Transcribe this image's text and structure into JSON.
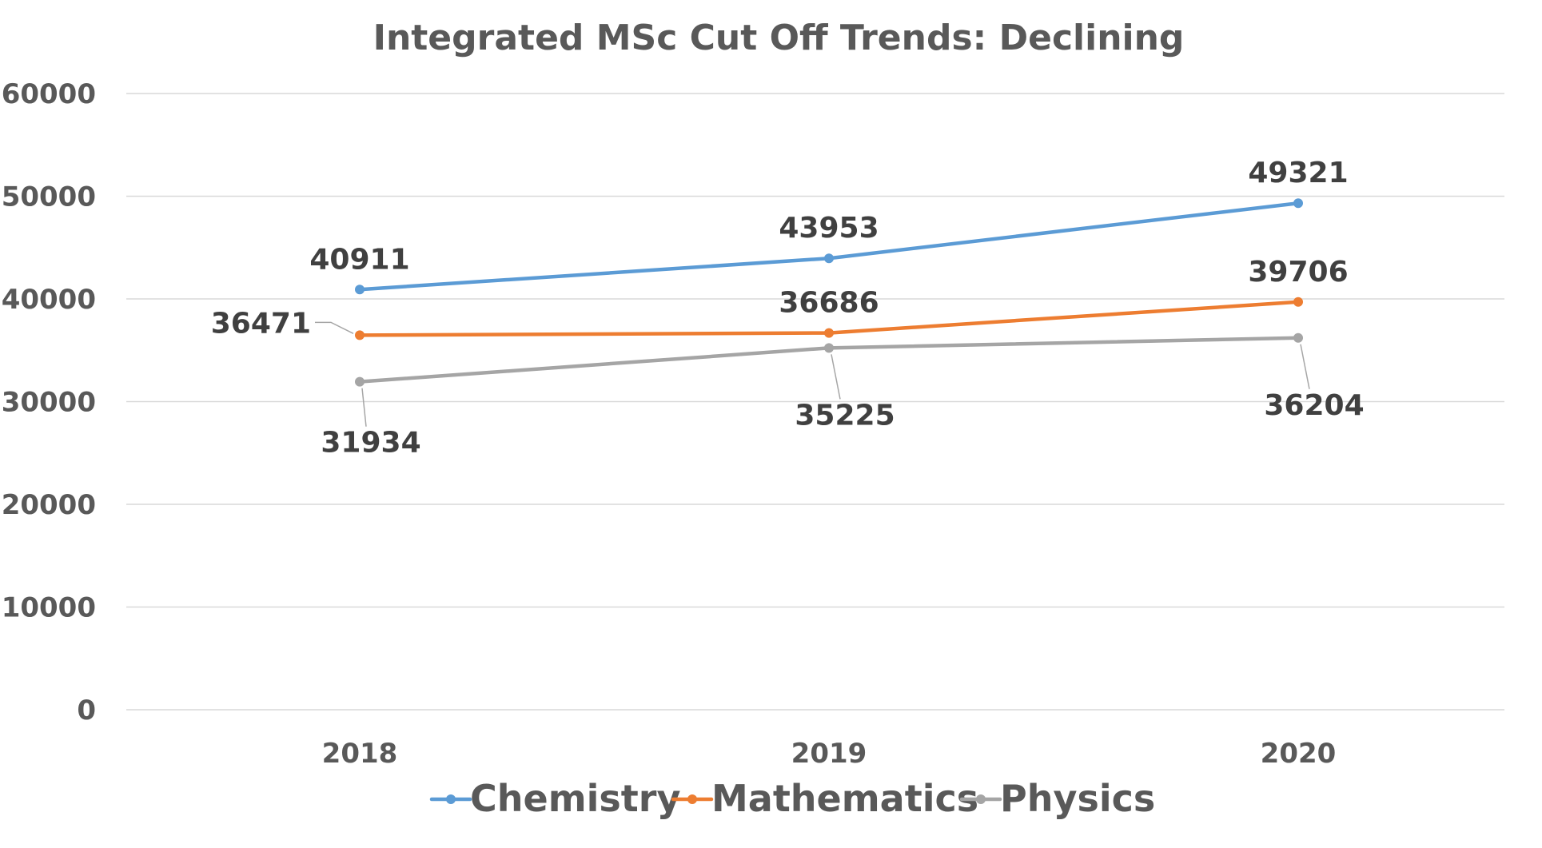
{
  "chart_data": {
    "type": "line",
    "title": "Integrated MSc Cut Off Trends: Declining",
    "xlabel": "",
    "ylabel": "",
    "categories": [
      "2018",
      "2019",
      "2020"
    ],
    "ylim": [
      0,
      60000
    ],
    "yticks": [
      0,
      10000,
      20000,
      30000,
      40000,
      50000,
      60000
    ],
    "ytick_labels": [
      "0",
      "10000",
      "20000",
      "30000",
      "40000",
      "50000",
      "60000"
    ],
    "grid": true,
    "legend_position": "bottom",
    "series": [
      {
        "name": "Chemistry",
        "color": "#5b9bd5",
        "values": [
          40911,
          43953,
          49321
        ],
        "labels": [
          "40911",
          "43953",
          "49321"
        ],
        "label_positions": [
          "above",
          "above",
          "above"
        ]
      },
      {
        "name": "Mathematics",
        "color": "#ed7d31",
        "values": [
          36471,
          36686,
          39706
        ],
        "labels": [
          "36471",
          "36686",
          "39706"
        ],
        "label_positions": [
          "left",
          "above",
          "above"
        ]
      },
      {
        "name": "Physics",
        "color": "#a5a5a5",
        "values": [
          31934,
          35225,
          36204
        ],
        "labels": [
          "31934",
          "35225",
          "36204"
        ],
        "label_positions": [
          "below",
          "below",
          "below"
        ]
      }
    ]
  }
}
